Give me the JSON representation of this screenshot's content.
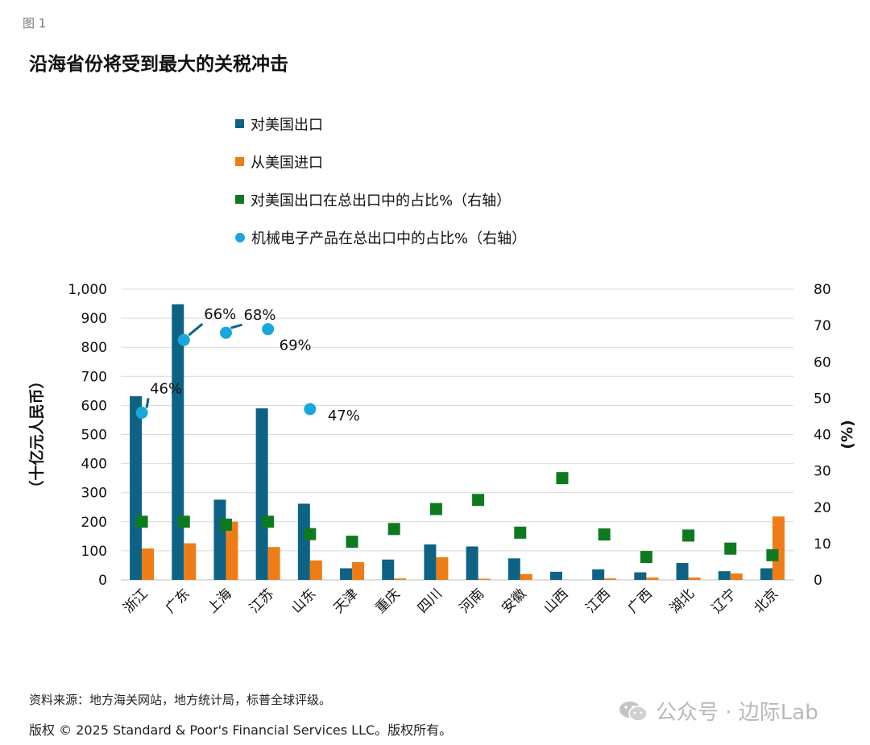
{
  "figure_label": "图 1",
  "title": "沿海省份将受到最大的关税冲击",
  "legend": [
    {
      "label": "对美国出口",
      "color": "#0e6384",
      "shape": "square"
    },
    {
      "label": "从美国进口",
      "color": "#ee7d17",
      "shape": "square"
    },
    {
      "label": "对美国出口在总出口中的占比%（右轴）",
      "color": "#0e7a1f",
      "shape": "square"
    },
    {
      "label": "机械电子产品在总出口中的占比%（右轴）",
      "color": "#1aa8dc",
      "shape": "circle"
    }
  ],
  "footer": {
    "source": "资料来源：地方海关网站，地方统计局，标普全球评级。",
    "copyright": "版权 © 2025 Standard & Poor's Financial Services LLC。版权所有。"
  },
  "watermark": "公众号 · 边际Lab",
  "chart_data": {
    "type": "bar",
    "categories": [
      "浙江",
      "广东",
      "上海",
      "江苏",
      "山东",
      "天津",
      "重庆",
      "四川",
      "河南",
      "安徽",
      "山西",
      "江西",
      "广西",
      "湖北",
      "辽宁",
      "北京"
    ],
    "ylabel": "（十亿元人民币）",
    "y2label": "(%)",
    "ylim": [
      0,
      1000
    ],
    "y2lim": [
      0,
      80
    ],
    "yticks": [
      "0",
      "100",
      "200",
      "300",
      "400",
      "500",
      "600",
      "700",
      "800",
      "900",
      "1,000"
    ],
    "y2ticks": [
      "0",
      "10",
      "20",
      "30",
      "40",
      "50",
      "60",
      "70",
      "80"
    ],
    "series": [
      {
        "name": "对美国出口",
        "type": "bar",
        "axis": "left",
        "color": "#0e6384",
        "values": [
          632,
          948,
          276,
          590,
          262,
          40,
          70,
          122,
          115,
          74,
          28,
          36,
          26,
          58,
          30,
          40
        ]
      },
      {
        "name": "从美国进口",
        "type": "bar",
        "axis": "left",
        "color": "#ee7d17",
        "values": [
          108,
          126,
          200,
          113,
          67,
          61,
          5,
          78,
          4,
          20,
          0,
          5,
          8,
          8,
          22,
          218
        ]
      },
      {
        "name": "对美国出口在总出口中的占比%（右轴）",
        "type": "scatter",
        "marker": "square",
        "axis": "right",
        "color": "#0e7a1f",
        "values": [
          16,
          16,
          15.2,
          16,
          12.6,
          10.5,
          14,
          19.5,
          22,
          13,
          28,
          12.5,
          6.3,
          12.2,
          8.6,
          6.8
        ]
      },
      {
        "name": "机械电子产品在总出口中的占比%（右轴）",
        "type": "scatter",
        "marker": "circle",
        "axis": "right",
        "color": "#1aa8dc",
        "values": [
          46,
          66,
          68,
          69,
          47,
          null,
          null,
          null,
          null,
          null,
          null,
          null,
          null,
          null,
          null,
          null
        ],
        "labels": [
          "46%",
          "66%",
          "68%",
          "69%",
          "47%",
          null,
          null,
          null,
          null,
          null,
          null,
          null,
          null,
          null,
          null,
          null
        ]
      }
    ]
  }
}
